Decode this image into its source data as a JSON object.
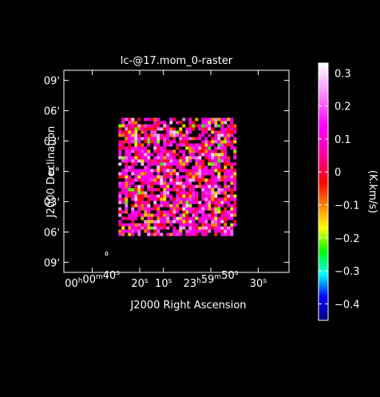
{
  "chart_data": {
    "type": "heatmap",
    "title": "lc-@17.mom_0-raster",
    "xlabel": "J2000 Right Ascension",
    "ylabel": "J2000 Declination",
    "colorbar_label": "(K.km/s)",
    "x_ticks": [
      {
        "label": "00h00m40s",
        "h": "00",
        "m": "00",
        "s": "40",
        "x_sec": 40
      },
      {
        "label": "20s",
        "s": "20",
        "x_sec": 20
      },
      {
        "label": "10s",
        "s": "10",
        "x_sec": 10
      },
      {
        "label": "23h59m50s",
        "h": "23",
        "m": "59",
        "s": "50",
        "x_sec": -10
      },
      {
        "label": "30s",
        "s": "30",
        "x_sec": -30
      }
    ],
    "y_ticks": [
      {
        "label": "09'",
        "arcmin": 9
      },
      {
        "label": "06'",
        "arcmin": 6
      },
      {
        "label": "03'",
        "arcmin": 3
      },
      {
        "label": "0°",
        "arcmin": 0
      },
      {
        "label": "03'",
        "arcmin": -3
      },
      {
        "label": "06'",
        "arcmin": -6
      },
      {
        "label": "09'",
        "arcmin": -9
      }
    ],
    "xlim_sec": [
      52,
      -43
    ],
    "ylim_arcmin": [
      -10,
      10
    ],
    "map_extent": {
      "x_sec": [
        29,
        -20
      ],
      "y_arcmin": [
        -6.3,
        5.3
      ]
    },
    "colorbar": {
      "min": -0.45,
      "max": 0.33,
      "ticks": [
        {
          "label": "0.3",
          "value": 0.3
        },
        {
          "label": "0.2",
          "value": 0.2
        },
        {
          "label": "0.1",
          "value": 0.1
        },
        {
          "label": "0",
          "value": 0
        },
        {
          "label": "−0.1",
          "value": -0.1
        },
        {
          "label": "−0.2",
          "value": -0.2
        },
        {
          "label": "−0.3",
          "value": -0.3
        },
        {
          "label": "−0.4",
          "value": -0.4
        }
      ],
      "stops": [
        {
          "value": -0.45,
          "color": "#000080"
        },
        {
          "value": -0.38,
          "color": "#0000ff"
        },
        {
          "value": -0.31,
          "color": "#00ffff"
        },
        {
          "value": -0.24,
          "color": "#00ff00"
        },
        {
          "value": -0.17,
          "color": "#ffff00"
        },
        {
          "value": -0.1,
          "color": "#ff8000"
        },
        {
          "value": -0.03,
          "color": "#ff0000"
        },
        {
          "value": 0.05,
          "color": "#ff00a0"
        },
        {
          "value": 0.14,
          "color": "#ff00ff"
        },
        {
          "value": 0.24,
          "color": "#ff90ff"
        },
        {
          "value": 0.33,
          "color": "#ffffff"
        }
      ]
    },
    "beam_marker": "ellipse",
    "grid": false
  }
}
